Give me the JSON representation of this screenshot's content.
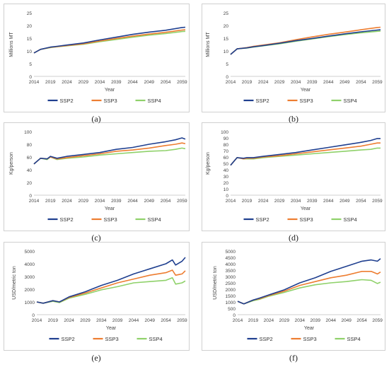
{
  "legend": {
    "items": [
      {
        "name": "SSP2",
        "color": "#1f3f8f"
      },
      {
        "name": "SSP3",
        "color": "#ed7d31"
      },
      {
        "name": "SSP4",
        "color": "#8fd16a"
      }
    ]
  },
  "captions": [
    "(a)",
    "(b)",
    "(c)",
    "(d)",
    "(e)",
    "(f)"
  ],
  "chart_data": [
    {
      "type": "line",
      "ylabel": "Millions MT",
      "xlabel": "Year",
      "ylim": [
        0,
        25
      ],
      "yticks": [
        0,
        5,
        10,
        15,
        20,
        25
      ],
      "xticks": [
        "2014",
        "2019",
        "2024",
        "2029",
        "2034",
        "2039",
        "2044",
        "2049",
        "2054",
        "2059"
      ],
      "x_start": 2014,
      "x_end": 2060,
      "series": [
        {
          "name": "SSP2",
          "x": [
            2014,
            2016,
            2019,
            2021,
            2024,
            2029,
            2034,
            2039,
            2044,
            2049,
            2054,
            2059,
            2060
          ],
          "values": [
            9.2,
            10.6,
            11.5,
            11.8,
            12.3,
            13.1,
            14.3,
            15.4,
            16.5,
            17.4,
            18.1,
            19.2,
            19.3
          ]
        },
        {
          "name": "SSP3",
          "x": [
            2014,
            2016,
            2019,
            2021,
            2024,
            2029,
            2034,
            2039,
            2044,
            2049,
            2054,
            2059,
            2060
          ],
          "values": [
            9.2,
            10.6,
            11.4,
            11.7,
            12.1,
            12.8,
            13.9,
            14.9,
            15.8,
            16.6,
            17.3,
            18.2,
            18.3
          ]
        },
        {
          "name": "SSP4",
          "x": [
            2014,
            2016,
            2019,
            2021,
            2024,
            2029,
            2034,
            2039,
            2044,
            2049,
            2054,
            2059,
            2060
          ],
          "values": [
            9.2,
            10.6,
            11.3,
            11.6,
            12.0,
            12.6,
            13.6,
            14.5,
            15.4,
            16.2,
            16.8,
            17.6,
            17.7
          ]
        }
      ]
    },
    {
      "type": "line",
      "ylabel": "Millions MT",
      "xlabel": "Year",
      "ylim": [
        0,
        25
      ],
      "yticks": [
        0,
        5,
        10,
        15,
        20,
        25
      ],
      "xticks": [
        "2014",
        "2019",
        "2024",
        "2029",
        "2034",
        "2039",
        "2044",
        "2049",
        "2054",
        "2059"
      ],
      "x_start": 2014,
      "x_end": 2060,
      "series": [
        {
          "name": "SSP2",
          "x": [
            2014,
            2016,
            2019,
            2021,
            2024,
            2029,
            2034,
            2039,
            2044,
            2049,
            2054,
            2059,
            2060
          ],
          "values": [
            8.6,
            10.8,
            11.2,
            11.6,
            12.1,
            13.0,
            14.0,
            14.9,
            15.8,
            16.7,
            17.5,
            18.2,
            18.3
          ]
        },
        {
          "name": "SSP3",
          "x": [
            2014,
            2016,
            2019,
            2021,
            2024,
            2029,
            2034,
            2039,
            2044,
            2049,
            2054,
            2059,
            2060
          ],
          "values": [
            8.6,
            10.8,
            11.3,
            11.8,
            12.3,
            13.2,
            14.4,
            15.5,
            16.5,
            17.4,
            18.3,
            19.2,
            19.3
          ]
        },
        {
          "name": "SSP4",
          "x": [
            2014,
            2016,
            2019,
            2021,
            2024,
            2029,
            2034,
            2039,
            2044,
            2049,
            2054,
            2059,
            2060
          ],
          "values": [
            8.6,
            10.8,
            11.1,
            11.5,
            12.0,
            12.8,
            13.8,
            14.7,
            15.6,
            16.4,
            17.1,
            17.7,
            17.8
          ]
        }
      ]
    },
    {
      "type": "line",
      "ylabel": "Kg/person",
      "xlabel": "Year",
      "ylim": [
        0,
        100
      ],
      "yticks": [
        0,
        20,
        40,
        60,
        80,
        100
      ],
      "xticks": [
        "2014",
        "2019",
        "2024",
        "2029",
        "2034",
        "2039",
        "2044",
        "2049",
        "2054",
        "2059"
      ],
      "x_start": 2014,
      "x_end": 2060,
      "series": [
        {
          "name": "SSP2",
          "x": [
            2014,
            2016,
            2018,
            2019,
            2021,
            2024,
            2029,
            2034,
            2039,
            2044,
            2049,
            2054,
            2057,
            2059,
            2060
          ],
          "values": [
            49,
            58,
            57,
            61,
            58,
            61,
            64,
            67,
            72,
            75,
            80,
            84,
            87,
            90,
            88
          ]
        },
        {
          "name": "SSP3",
          "x": [
            2014,
            2016,
            2018,
            2019,
            2021,
            2024,
            2029,
            2034,
            2039,
            2044,
            2049,
            2054,
            2057,
            2059,
            2060
          ],
          "values": [
            49,
            58,
            57,
            60,
            57,
            59,
            62,
            65,
            69,
            71,
            74,
            78,
            80,
            82,
            81
          ]
        },
        {
          "name": "SSP4",
          "x": [
            2014,
            2016,
            2018,
            2019,
            2021,
            2024,
            2029,
            2034,
            2039,
            2044,
            2049,
            2054,
            2057,
            2059,
            2060
          ],
          "values": [
            49,
            58,
            56,
            60,
            56,
            58,
            60,
            63,
            65,
            67,
            69,
            70,
            72,
            74,
            73
          ]
        }
      ]
    },
    {
      "type": "line",
      "ylabel": "Kg/person",
      "xlabel": "Year",
      "ylim": [
        0,
        100
      ],
      "yticks": [
        0,
        10,
        20,
        30,
        40,
        50,
        60,
        70,
        80,
        90,
        100
      ],
      "xticks": [
        "2014",
        "2019",
        "2024",
        "2029",
        "2034",
        "2039",
        "2044",
        "2049",
        "2054",
        "2059"
      ],
      "x_start": 2014,
      "x_end": 2060,
      "series": [
        {
          "name": "SSP2",
          "x": [
            2014,
            2016,
            2018,
            2019,
            2021,
            2024,
            2029,
            2034,
            2039,
            2044,
            2049,
            2054,
            2057,
            2059,
            2060
          ],
          "values": [
            47,
            59,
            58,
            59,
            59,
            61,
            64,
            67,
            71,
            75,
            79,
            83,
            86,
            89,
            89
          ]
        },
        {
          "name": "SSP3",
          "x": [
            2014,
            2016,
            2018,
            2019,
            2021,
            2024,
            2029,
            2034,
            2039,
            2044,
            2049,
            2054,
            2057,
            2059,
            2060
          ],
          "values": [
            47,
            59,
            57,
            58,
            58,
            60,
            62,
            65,
            68,
            71,
            74,
            77,
            80,
            82,
            82
          ]
        },
        {
          "name": "SSP4",
          "x": [
            2014,
            2016,
            2018,
            2019,
            2021,
            2024,
            2029,
            2034,
            2039,
            2044,
            2049,
            2054,
            2057,
            2059,
            2060
          ],
          "values": [
            47,
            59,
            57,
            57,
            57,
            59,
            61,
            63,
            65,
            67,
            69,
            71,
            72,
            74,
            74
          ]
        }
      ]
    },
    {
      "type": "line",
      "ylabel": "USD/metric ton",
      "xlabel": "Year",
      "ylim": [
        0,
        5000
      ],
      "yticks": [
        0,
        1000,
        2000,
        3000,
        4000,
        5000
      ],
      "xticks": [
        "2014",
        "2019",
        "2024",
        "2029",
        "2034",
        "2039",
        "2044",
        "2049",
        "2054",
        "2059"
      ],
      "x_start": 2014,
      "x_end": 2060,
      "series": [
        {
          "name": "SSP2",
          "x": [
            2014,
            2016,
            2019,
            2021,
            2024,
            2029,
            2034,
            2039,
            2044,
            2049,
            2054,
            2056,
            2057,
            2059,
            2060
          ],
          "values": [
            1000,
            900,
            1100,
            1000,
            1400,
            1800,
            2300,
            2700,
            3200,
            3600,
            4000,
            4300,
            3900,
            4200,
            4500
          ]
        },
        {
          "name": "SSP3",
          "x": [
            2014,
            2016,
            2019,
            2021,
            2024,
            2029,
            2034,
            2039,
            2044,
            2049,
            2054,
            2056,
            2057,
            2059,
            2060
          ],
          "values": [
            1000,
            900,
            1100,
            1000,
            1350,
            1700,
            2100,
            2500,
            2800,
            3100,
            3300,
            3500,
            3100,
            3200,
            3450
          ]
        },
        {
          "name": "SSP4",
          "x": [
            2014,
            2016,
            2019,
            2021,
            2024,
            2029,
            2034,
            2039,
            2044,
            2049,
            2054,
            2056,
            2057,
            2059,
            2060
          ],
          "values": [
            1000,
            900,
            1050,
            950,
            1300,
            1600,
            1950,
            2200,
            2500,
            2600,
            2700,
            2900,
            2400,
            2500,
            2650
          ]
        }
      ]
    },
    {
      "type": "line",
      "ylabel": "USD/metric ton",
      "xlabel": "Year",
      "ylim": [
        0,
        5000
      ],
      "yticks": [
        0,
        500,
        1000,
        1500,
        2000,
        2500,
        3000,
        3500,
        4000,
        4500,
        5000
      ],
      "xticks": [
        "2014",
        "2019",
        "2024",
        "2029",
        "2034",
        "2039",
        "2044",
        "2049",
        "2054",
        "2059"
      ],
      "x_start": 2014,
      "x_end": 2060,
      "series": [
        {
          "name": "SSP2",
          "x": [
            2014,
            2016,
            2019,
            2021,
            2024,
            2029,
            2034,
            2039,
            2044,
            2049,
            2054,
            2057,
            2059,
            2060
          ],
          "values": [
            1050,
            850,
            1150,
            1300,
            1550,
            1950,
            2500,
            2900,
            3400,
            3800,
            4200,
            4300,
            4200,
            4400
          ]
        },
        {
          "name": "SSP3",
          "x": [
            2014,
            2016,
            2019,
            2021,
            2024,
            2029,
            2034,
            2039,
            2044,
            2049,
            2054,
            2057,
            2059,
            2060
          ],
          "values": [
            1050,
            850,
            1150,
            1250,
            1500,
            1850,
            2300,
            2600,
            2900,
            3100,
            3400,
            3400,
            3200,
            3350
          ]
        },
        {
          "name": "SSP4",
          "x": [
            2014,
            2016,
            2019,
            2021,
            2024,
            2029,
            2034,
            2039,
            2044,
            2049,
            2054,
            2057,
            2059,
            2060
          ],
          "values": [
            1050,
            850,
            1100,
            1200,
            1450,
            1750,
            2100,
            2350,
            2500,
            2600,
            2750,
            2700,
            2450,
            2550
          ]
        }
      ]
    }
  ]
}
